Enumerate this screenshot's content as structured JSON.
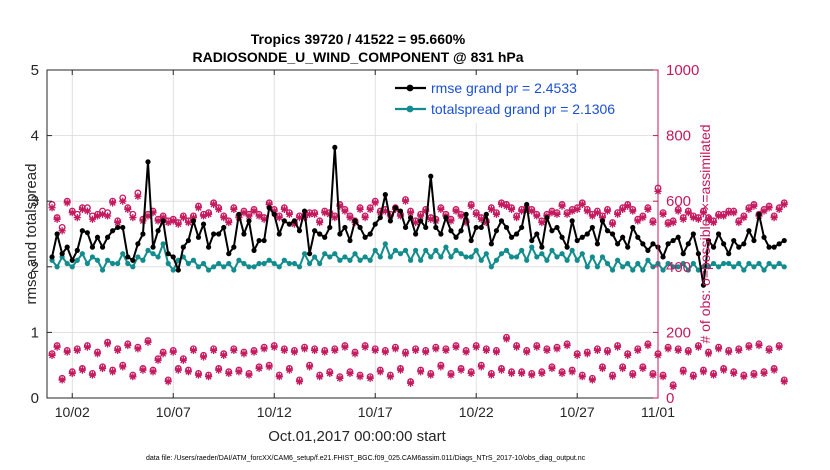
{
  "chart_data": {
    "type": "line",
    "title_line1": "Tropics 39720 / 41522 = 95.660%",
    "title_line2": "RADIOSONDE_U_WIND_COMPONENT @ 831 hPa",
    "ylabel_left": "rmse and totalspread",
    "ylabel_right": "# of obs: o=possible; ×=assimilated",
    "xlabel": "Oct.01,2017 00:00:00 start",
    "footnote": "data file: /Users/raeder/DAI/ATM_forcXX/CAM6_setup/f.e21.FHIST_BGC.f09_025.CAM6assim.011/Diags_NTrS_2017-10/obs_diag_output.nc",
    "x_range": [
      0.75,
      31.0
    ],
    "x_ticks": [
      2,
      7,
      12,
      17,
      22,
      27,
      31
    ],
    "x_tick_labels": [
      "10/02",
      "10/07",
      "10/12",
      "10/17",
      "10/22",
      "10/27",
      "11/01"
    ],
    "ylim_left": [
      0,
      5
    ],
    "yticks_left": [
      "0",
      "1",
      "2",
      "3",
      "4",
      "5"
    ],
    "ylim_right": [
      0,
      1000
    ],
    "yticks_right": [
      "0",
      "200",
      "400",
      "600",
      "800",
      "1000"
    ],
    "legend": [
      "rmse grand pr = 2.4533",
      "totalspread grand pr = 2.1306"
    ],
    "colors": {
      "rmse": "#000000",
      "spread": "#128c8c",
      "obs": "#c4195f",
      "grid": "#d9d9d9"
    },
    "x_start": 1.0,
    "x_step": 0.25,
    "series": [
      {
        "name": "rmse",
        "axis": "left",
        "values": [
          2.15,
          2.5,
          2.2,
          2.3,
          2.1,
          2.25,
          2.55,
          2.52,
          2.3,
          2.45,
          2.3,
          2.45,
          2.55,
          2.6,
          2.6,
          2.15,
          2.1,
          2.35,
          2.5,
          3.6,
          2.3,
          2.55,
          2.7,
          2.2,
          2.15,
          1.95,
          2.3,
          2.4,
          2.7,
          2.45,
          2.65,
          2.3,
          2.5,
          2.5,
          2.6,
          2.2,
          2.3,
          2.8,
          2.5,
          2.7,
          2.25,
          2.4,
          2.4,
          2.9,
          2.8,
          2.5,
          2.7,
          2.65,
          2.7,
          2.55,
          2.85,
          2.2,
          2.55,
          2.5,
          2.45,
          2.6,
          3.82,
          2.5,
          2.6,
          2.4,
          2.7,
          2.6,
          2.45,
          2.5,
          2.65,
          2.75,
          3.1,
          2.7,
          2.9,
          2.85,
          2.6,
          2.75,
          2.5,
          2.7,
          2.6,
          3.38,
          2.6,
          2.5,
          2.75,
          2.55,
          2.45,
          2.55,
          2.8,
          2.4,
          2.6,
          2.6,
          2.8,
          2.35,
          2.55,
          2.7,
          2.6,
          2.45,
          2.5,
          2.6,
          2.95,
          2.4,
          2.5,
          2.3,
          2.75,
          2.55,
          2.6,
          2.45,
          2.3,
          2.7,
          2.4,
          2.45,
          2.5,
          2.6,
          2.35,
          2.7,
          2.55,
          2.5,
          2.35,
          2.45,
          2.3,
          2.6,
          2.45,
          2.35,
          2.25,
          2.35,
          2.3,
          2.15,
          2.35,
          2.4,
          2.45,
          2.2,
          2.35,
          2.5,
          2.2,
          1.72,
          2.4,
          2.3,
          2.5,
          2.35,
          2.2,
          2.4,
          2.3,
          2.35,
          2.55,
          2.4,
          2.8,
          2.45,
          2.3,
          2.3,
          2.35,
          2.4
        ]
      },
      {
        "name": "totalspread",
        "axis": "left",
        "values": [
          2.1,
          2.0,
          2.15,
          2.05,
          2.0,
          2.1,
          2.2,
          2.05,
          2.15,
          2.1,
          1.95,
          2.1,
          2.05,
          2.05,
          2.2,
          2.05,
          2.0,
          2.15,
          2.1,
          2.25,
          2.2,
          2.15,
          2.35,
          2.05,
          1.95,
          2.1,
          2.15,
          2.05,
          2.1,
          2.0,
          2.05,
          1.95,
          2.0,
          2.05,
          2.0,
          2.05,
          1.95,
          2.1,
          2.05,
          2.0,
          2.0,
          2.05,
          2.05,
          2.1,
          2.05,
          2.0,
          2.1,
          2.05,
          2.05,
          2.0,
          2.2,
          2.05,
          2.15,
          2.05,
          2.2,
          2.15,
          2.2,
          2.1,
          2.15,
          2.1,
          2.2,
          2.1,
          2.15,
          2.1,
          2.25,
          2.15,
          2.35,
          2.15,
          2.25,
          2.2,
          2.25,
          2.1,
          2.25,
          2.1,
          2.25,
          2.15,
          2.25,
          2.15,
          2.3,
          2.15,
          2.25,
          2.2,
          2.15,
          2.15,
          2.25,
          2.1,
          2.2,
          2.0,
          2.1,
          2.2,
          2.25,
          2.15,
          2.15,
          2.25,
          2.1,
          2.3,
          2.15,
          2.2,
          2.1,
          2.25,
          2.15,
          2.2,
          2.1,
          2.25,
          2.1,
          2.2,
          2.0,
          2.15,
          2.0,
          2.15,
          2.05,
          1.95,
          2.1,
          2.0,
          2.05,
          1.95,
          2.05,
          1.95,
          2.1,
          2.0,
          2.05,
          1.95,
          2.05,
          2.0,
          2.0,
          2.05,
          1.95,
          2.05,
          1.95,
          2.0,
          2.0,
          2.05,
          2.0,
          2.05,
          2.05,
          2.0,
          2.05,
          1.95,
          2.05,
          2.0,
          2.05,
          1.95,
          2.05,
          2.0,
          2.05,
          2.0
        ]
      },
      {
        "name": "obs_possible_high",
        "axis": "right",
        "marker": "o",
        "values": [
          590,
          550,
          520,
          600,
          570,
          560,
          580,
          580,
          555,
          560,
          570,
          565,
          600,
          540,
          610,
          580,
          560,
          625,
          545,
          560,
          570,
          545,
          555,
          540,
          545,
          535,
          555,
          540,
          555,
          585,
          560,
          565,
          595,
          580,
          555,
          540,
          580,
          555,
          570,
          560,
          575,
          560,
          550,
          595,
          575,
          555,
          580,
          565,
          535,
          555,
          555,
          565,
          565,
          540,
          570,
          565,
          555,
          590,
          575,
          555,
          540,
          580,
          555,
          580,
          600,
          570,
          575,
          560,
          580,
          560,
          605,
          570,
          540,
          560,
          575,
          550,
          545,
          580,
          560,
          545,
          575,
          560,
          540,
          590,
          565,
          550,
          540,
          580,
          565,
          595,
          590,
          580,
          555,
          575,
          580,
          575,
          560,
          540,
          560,
          570,
          565,
          590,
          565,
          575,
          580,
          595,
          575,
          560,
          570,
          555,
          575,
          535,
          565,
          580,
          590,
          575,
          545,
          555,
          580,
          540,
          640,
          565,
          535,
          540,
          575,
          550,
          570,
          555,
          550,
          570,
          550,
          540,
          560,
          560,
          570,
          570,
          540,
          555,
          580,
          590,
          560,
          575,
          585,
          555,
          580,
          595
        ]
      },
      {
        "name": "obs_assimilated_high",
        "axis": "right",
        "marker": "*",
        "values": [
          580,
          545,
          510,
          595,
          565,
          550,
          575,
          570,
          545,
          555,
          560,
          555,
          595,
          535,
          600,
          575,
          550,
          615,
          540,
          555,
          565,
          540,
          550,
          535,
          540,
          530,
          550,
          535,
          550,
          580,
          555,
          560,
          590,
          575,
          550,
          535,
          575,
          550,
          565,
          555,
          570,
          555,
          545,
          590,
          570,
          550,
          575,
          560,
          530,
          550,
          550,
          560,
          560,
          535,
          565,
          560,
          550,
          585,
          570,
          550,
          535,
          575,
          550,
          575,
          595,
          565,
          570,
          555,
          575,
          555,
          600,
          565,
          535,
          555,
          570,
          545,
          540,
          575,
          555,
          540,
          570,
          555,
          535,
          585,
          560,
          545,
          535,
          575,
          560,
          590,
          585,
          575,
          550,
          570,
          575,
          570,
          555,
          535,
          555,
          565,
          560,
          585,
          560,
          570,
          575,
          590,
          570,
          555,
          565,
          550,
          570,
          530,
          560,
          575,
          585,
          570,
          540,
          550,
          575,
          535,
          630,
          560,
          530,
          535,
          570,
          545,
          565,
          550,
          545,
          565,
          545,
          535,
          555,
          555,
          565,
          565,
          535,
          550,
          575,
          585,
          555,
          570,
          580,
          550,
          575,
          590
        ]
      },
      {
        "name": "obs_possible_low",
        "axis": "right",
        "marker": "o",
        "values": [
          135,
          160,
          60,
          145,
          80,
          150,
          90,
          160,
          75,
          140,
          95,
          170,
          85,
          150,
          100,
          165,
          70,
          155,
          90,
          175,
          85,
          120,
          140,
          55,
          145,
          90,
          120,
          85,
          150,
          75,
          130,
          70,
          150,
          90,
          135,
          80,
          150,
          85,
          140,
          75,
          145,
          95,
          155,
          100,
          160,
          70,
          150,
          90,
          145,
          55,
          155,
          100,
          150,
          70,
          145,
          80,
          150,
          65,
          160,
          80,
          140,
          70,
          160,
          65,
          150,
          85,
          145,
          70,
          155,
          90,
          140,
          50,
          150,
          85,
          145,
          75,
          155,
          100,
          150,
          75,
          160,
          90,
          145,
          80,
          160,
          100,
          150,
          75,
          145,
          90,
          185,
          80,
          160,
          80,
          145,
          75,
          160,
          80,
          150,
          95,
          155,
          80,
          165,
          85,
          135,
          70,
          140,
          60,
          150,
          95,
          145,
          70,
          160,
          95,
          135,
          75,
          150,
          95,
          165,
          75,
          135,
          70,
          155,
          40,
          150,
          85,
          145,
          70,
          160,
          85,
          140,
          75,
          155,
          90,
          145,
          80,
          150,
          70,
          160,
          75,
          165,
          80,
          150,
          90,
          160,
          55
        ]
      },
      {
        "name": "obs_assimilated_low",
        "axis": "right",
        "marker": "*",
        "values": [
          130,
          155,
          55,
          140,
          75,
          145,
          85,
          155,
          70,
          135,
          90,
          165,
          80,
          145,
          95,
          160,
          65,
          150,
          85,
          170,
          80,
          115,
          135,
          50,
          140,
          85,
          115,
          80,
          145,
          70,
          125,
          65,
          145,
          85,
          130,
          75,
          145,
          80,
          135,
          70,
          140,
          90,
          150,
          95,
          155,
          65,
          145,
          85,
          140,
          50,
          150,
          95,
          145,
          65,
          140,
          75,
          145,
          60,
          155,
          75,
          135,
          65,
          155,
          60,
          145,
          80,
          140,
          65,
          150,
          85,
          135,
          45,
          145,
          80,
          140,
          70,
          150,
          95,
          145,
          70,
          155,
          85,
          140,
          75,
          155,
          95,
          145,
          70,
          140,
          85,
          180,
          75,
          155,
          75,
          140,
          70,
          155,
          75,
          145,
          90,
          150,
          75,
          160,
          80,
          130,
          65,
          135,
          55,
          145,
          90,
          140,
          65,
          155,
          90,
          130,
          70,
          145,
          90,
          160,
          70,
          130,
          65,
          150,
          35,
          145,
          80,
          140,
          65,
          155,
          80,
          135,
          70,
          150,
          85,
          140,
          75,
          145,
          65,
          155,
          70,
          160,
          75,
          145,
          85,
          155,
          50
        ]
      }
    ]
  }
}
